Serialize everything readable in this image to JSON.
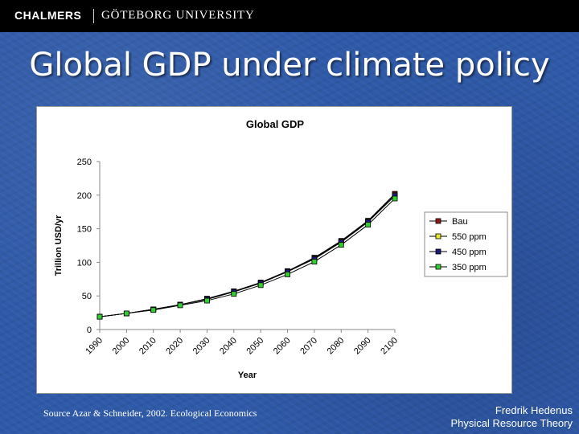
{
  "header": {
    "brand": "CHALMERS",
    "university": "GÖTEBORG UNIVERSITY"
  },
  "slide": {
    "title": "Global GDP under climate policy"
  },
  "footer": {
    "source": "Source Azar & Schneider, 2002. Ecological Economics",
    "author": "Fredrik Hedenus",
    "department": "Physical Resource Theory"
  },
  "chart_data": {
    "type": "line",
    "title": "Global GDP",
    "xlabel": "Year",
    "ylabel": "Trillion USD/yr",
    "categories": [
      "1990",
      "2000",
      "2010",
      "2020",
      "2030",
      "2040",
      "2050",
      "2060",
      "2070",
      "2080",
      "2090",
      "2100"
    ],
    "ylim": [
      0,
      250
    ],
    "yticks": [
      0,
      50,
      100,
      150,
      200,
      250
    ],
    "legend_position": "right",
    "series": [
      {
        "name": "Bau",
        "color": "#8b1a1a",
        "values": [
          19,
          24,
          30,
          37,
          46,
          57,
          70,
          87,
          107,
          132,
          162,
          202
        ]
      },
      {
        "name": "550 ppm",
        "color": "#e8e830",
        "values": [
          19,
          24,
          30,
          37,
          45,
          56,
          69,
          86,
          106,
          131,
          161,
          200
        ]
      },
      {
        "name": "450 ppm",
        "color": "#1a1a7a",
        "values": [
          19,
          24,
          30,
          37,
          45,
          56,
          69,
          86,
          105,
          130,
          160,
          199
        ]
      },
      {
        "name": "350 ppm",
        "color": "#33cc33",
        "values": [
          19,
          24,
          29,
          36,
          43,
          53,
          66,
          82,
          101,
          126,
          156,
          195
        ]
      }
    ]
  }
}
